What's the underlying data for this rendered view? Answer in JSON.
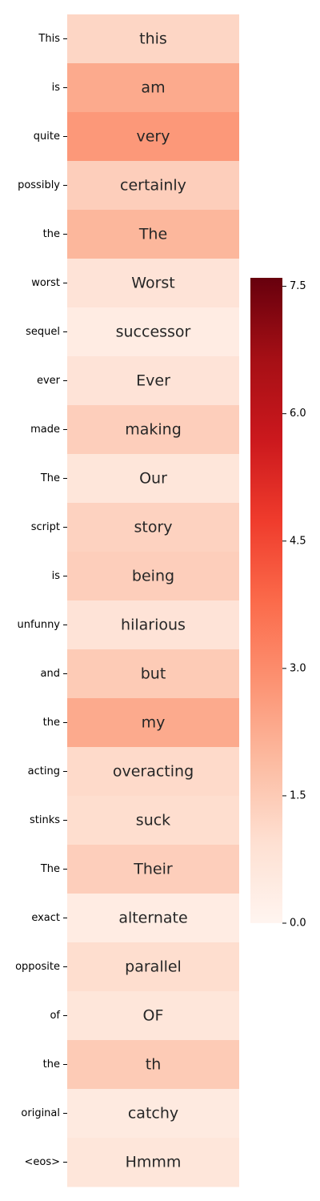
{
  "chart_data": {
    "type": "heatmap",
    "title": "",
    "xlabel": "",
    "ylabel": "",
    "colormap": "Reds",
    "rows": [
      {
        "label": "This",
        "text": "this",
        "value": 1.2
      },
      {
        "label": "is",
        "text": "am",
        "value": 2.3
      },
      {
        "label": "quite",
        "text": "very",
        "value": 2.7
      },
      {
        "label": "possibly",
        "text": "certainly",
        "value": 1.4
      },
      {
        "label": "the",
        "text": "The",
        "value": 2.0
      },
      {
        "label": "worst",
        "text": "Worst",
        "value": 0.8
      },
      {
        "label": "sequel",
        "text": "successor",
        "value": 0.4
      },
      {
        "label": "ever",
        "text": "Ever",
        "value": 0.8
      },
      {
        "label": "made",
        "text": "making",
        "value": 1.4
      },
      {
        "label": "The",
        "text": "Our",
        "value": 0.7
      },
      {
        "label": "script",
        "text": "story",
        "value": 1.3
      },
      {
        "label": "is",
        "text": "being",
        "value": 1.4
      },
      {
        "label": "unfunny",
        "text": "hilarious",
        "value": 0.8
      },
      {
        "label": "and",
        "text": "but",
        "value": 1.5
      },
      {
        "label": "the",
        "text": "my",
        "value": 2.3
      },
      {
        "label": "acting",
        "text": "overacting",
        "value": 1.1
      },
      {
        "label": "stinks",
        "text": "suck",
        "value": 1.0
      },
      {
        "label": "The",
        "text": "Their",
        "value": 1.4
      },
      {
        "label": "exact",
        "text": "alternate",
        "value": 0.4
      },
      {
        "label": "opposite",
        "text": "parallel",
        "value": 1.0
      },
      {
        "label": "of",
        "text": "OF",
        "value": 0.7
      },
      {
        "label": "the",
        "text": "th",
        "value": 1.5
      },
      {
        "label": "original",
        "text": "catchy",
        "value": 0.5
      },
      {
        "label": "<eos>",
        "text": "Hmmm",
        "value": 0.7
      }
    ],
    "colorbar": {
      "min": 0.0,
      "max": 7.6,
      "ticks": [
        {
          "value": 0.0,
          "label": "0.0"
        },
        {
          "value": 1.5,
          "label": "1.5"
        },
        {
          "value": 3.0,
          "label": "3.0"
        },
        {
          "value": 4.5,
          "label": "4.5"
        },
        {
          "value": 6.0,
          "label": "6.0"
        },
        {
          "value": 7.5,
          "label": "7.5"
        }
      ]
    }
  }
}
